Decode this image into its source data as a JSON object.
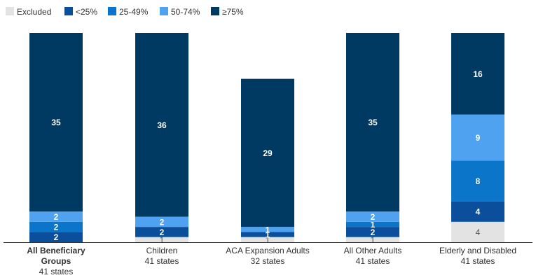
{
  "chart_data": {
    "type": "bar",
    "stacked": true,
    "legend_position": "top-left",
    "grid": false,
    "title": "",
    "xlabel": "",
    "ylabel": "",
    "ylim": [
      0,
      41
    ],
    "categories": [
      {
        "name": "All Beneficiary Groups",
        "name_lines": [
          "All Beneficiary",
          "Groups"
        ],
        "sub": "41 states",
        "bold": true
      },
      {
        "name": "Children",
        "name_lines": [
          "Children"
        ],
        "sub": "41 states",
        "bold": false
      },
      {
        "name": "ACA Expansion Adults",
        "name_lines": [
          "ACA Expansion Adults"
        ],
        "sub": "32 states",
        "bold": false
      },
      {
        "name": "All Other Adults",
        "name_lines": [
          "All Other Adults"
        ],
        "sub": "41 states",
        "bold": false
      },
      {
        "name": "Elderly and Disabled",
        "name_lines": [
          "Elderly and Disabled"
        ],
        "sub": "41 states",
        "bold": false
      }
    ],
    "series": [
      {
        "name": "Excluded",
        "color": "#e3e3e3",
        "values": [
          0,
          1,
          1,
          1,
          4
        ]
      },
      {
        "name": "<25%",
        "color": "#0b4f9c",
        "values": [
          2,
          2,
          1,
          2,
          4
        ]
      },
      {
        "name": "25-49%",
        "color": "#0a75c9",
        "values": [
          2,
          0,
          0,
          1,
          8
        ]
      },
      {
        "name": "50-74%",
        "color": "#4ea2f0",
        "values": [
          2,
          2,
          1,
          2,
          9
        ]
      },
      {
        "name": "≥75%",
        "color": "#003a63",
        "values": [
          35,
          36,
          29,
          35,
          16
        ]
      }
    ]
  }
}
